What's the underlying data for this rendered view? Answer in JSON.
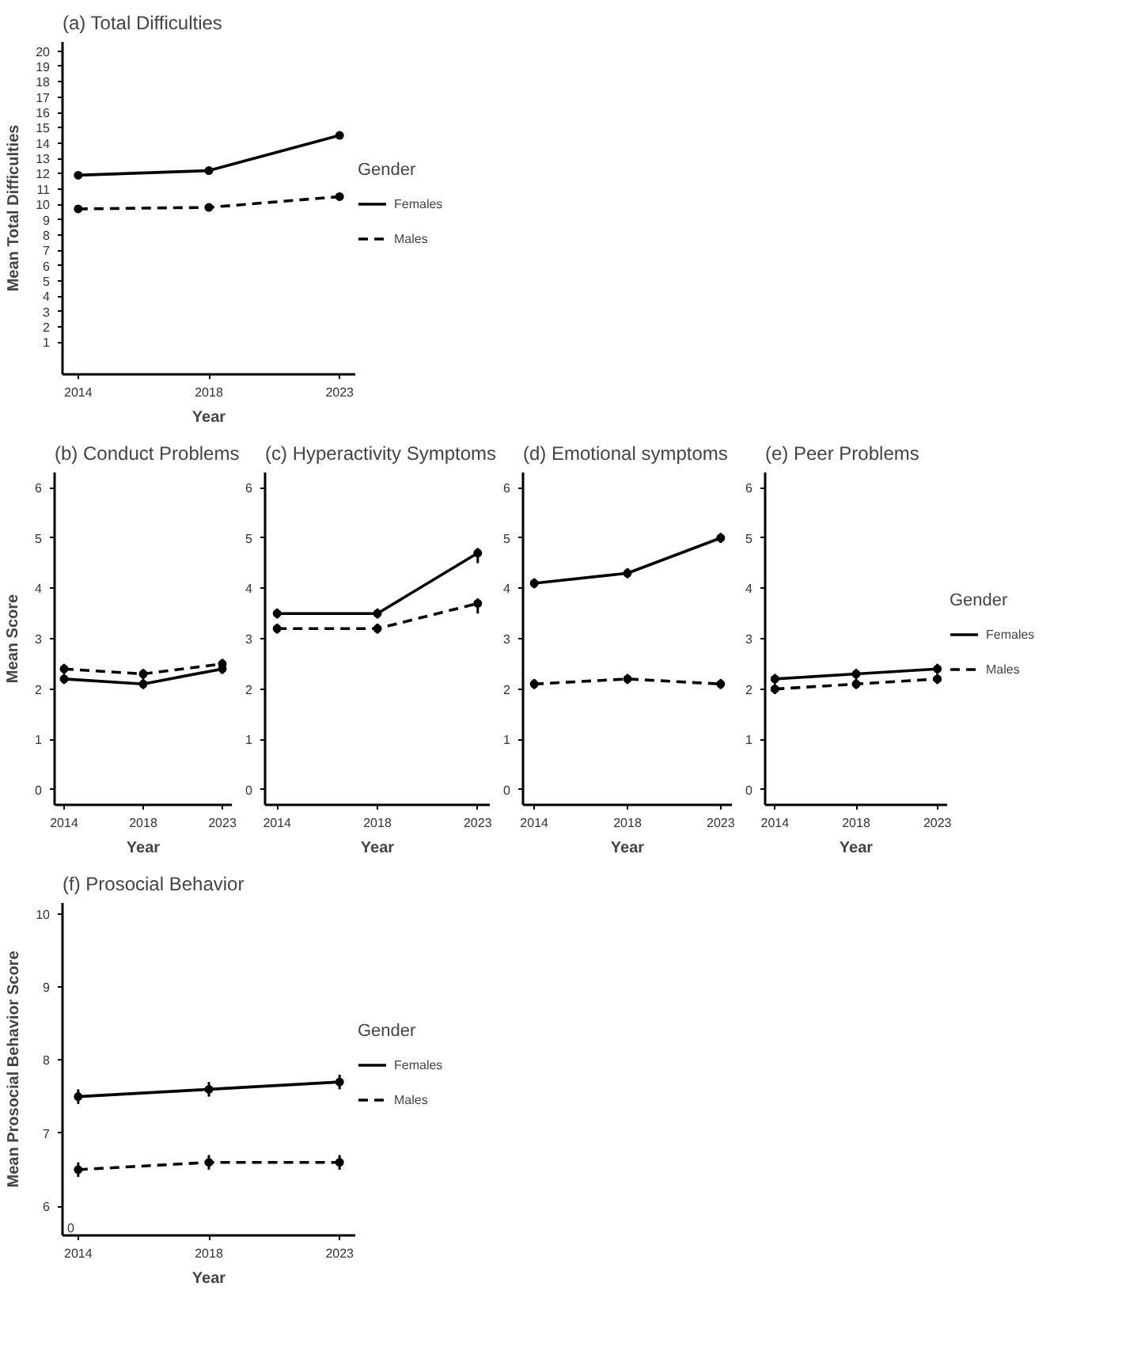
{
  "chart_data": [
    {
      "type": "line",
      "title": "(a) Total Difficulties",
      "xlabel": "Year",
      "ylabel": "Mean Total Difficulties",
      "categories": [
        "2014",
        "2018",
        "2023"
      ],
      "ylim": [
        -1.1,
        20.6
      ],
      "yticks": [
        1,
        2,
        3,
        4,
        5,
        6,
        7,
        8,
        9,
        10,
        11,
        12,
        13,
        14,
        15,
        16,
        17,
        18,
        19,
        20
      ],
      "grid": false,
      "legend": "right",
      "legend_title": "Gender",
      "marker": "circle",
      "series": [
        {
          "name": "Females",
          "color": "#000000",
          "line_style": "solid",
          "values": [
            11.9,
            12.2,
            14.5
          ],
          "errors": [
            0.2,
            0.2,
            0.25
          ]
        },
        {
          "name": "Males",
          "color": "#000000",
          "line_style": "dashed",
          "values": [
            9.7,
            9.8,
            10.5
          ],
          "errors": [
            0.2,
            0.25,
            0.25
          ]
        }
      ]
    },
    {
      "type": "line",
      "title": "(b) Conduct Problems",
      "xlabel": "Year",
      "ylabel": "Mean Score",
      "categories": [
        "2014",
        "2018",
        "2023"
      ],
      "ylim": [
        -0.3,
        6.3
      ],
      "yticks": [
        0,
        1,
        2,
        3,
        4,
        5,
        6
      ],
      "grid": false,
      "legend": false,
      "marker": "circle",
      "series": [
        {
          "color": "#000000",
          "line_style": "solid",
          "values": [
            2.2,
            2.1,
            2.4
          ],
          "errors": [
            0.1,
            0.1,
            0.1
          ]
        },
        {
          "color": "#000000",
          "line_style": "dashed",
          "values": [
            2.4,
            2.3,
            2.5
          ],
          "errors": [
            0.1,
            0.1,
            0.1
          ]
        }
      ]
    },
    {
      "type": "line",
      "title": "(c) Hyperactivity Symptoms",
      "xlabel": "Year",
      "categories": [
        "2014",
        "2018",
        "2023"
      ],
      "ylim": [
        -0.3,
        6.3
      ],
      "yticks": [
        0,
        1,
        2,
        3,
        4,
        5,
        6
      ],
      "grid": false,
      "legend": false,
      "marker": "circle",
      "series": [
        {
          "color": "#000000",
          "line_style": "solid",
          "values": [
            3.5,
            3.5,
            4.7
          ],
          "errors": [
            0.1,
            0.1,
            [
              4.5,
              4.8
            ]
          ]
        },
        {
          "color": "#000000",
          "line_style": "dashed",
          "values": [
            3.2,
            3.2,
            3.7
          ],
          "errors": [
            0.1,
            0.1,
            [
              3.5,
              3.8
            ]
          ]
        }
      ]
    },
    {
      "type": "line",
      "title": "(d) Emotional symptoms",
      "xlabel": "Year",
      "categories": [
        "2014",
        "2018",
        "2023"
      ],
      "ylim": [
        -0.3,
        6.3
      ],
      "yticks": [
        0,
        1,
        2,
        3,
        4,
        5,
        6
      ],
      "grid": false,
      "legend": false,
      "marker": "circle",
      "series": [
        {
          "color": "#000000",
          "line_style": "solid",
          "values": [
            4.1,
            4.3,
            5.0
          ],
          "errors": [
            0.1,
            0.1,
            0.1
          ]
        },
        {
          "color": "#000000",
          "line_style": "dashed",
          "values": [
            2.1,
            2.2,
            2.1
          ],
          "errors": [
            0.1,
            0.1,
            0.1
          ]
        }
      ]
    },
    {
      "type": "line",
      "title": "(e) Peer Problems",
      "xlabel": "Year",
      "categories": [
        "2014",
        "2018",
        "2023"
      ],
      "ylim": [
        -0.3,
        6.3
      ],
      "yticks": [
        0,
        1,
        2,
        3,
        4,
        5,
        6
      ],
      "grid": false,
      "legend": "right",
      "legend_title": "Gender",
      "marker": "circle",
      "series": [
        {
          "name": "Females",
          "color": "#000000",
          "line_style": "solid",
          "values": [
            2.2,
            2.3,
            2.4
          ],
          "errors": [
            0.1,
            0.1,
            0.1
          ]
        },
        {
          "name": "Males",
          "color": "#000000",
          "line_style": "dashed",
          "values": [
            2.0,
            2.1,
            2.2
          ],
          "errors": [
            0.1,
            0.1,
            0.1
          ]
        }
      ]
    },
    {
      "type": "line",
      "title": "(f) Prosocial Behavior",
      "xlabel": "Year",
      "ylabel": "Mean Prosocial Behavior Score",
      "categories": [
        "2014",
        "2018",
        "2023"
      ],
      "ylim": [
        5.6,
        10.15
      ],
      "yticks": [
        6,
        7,
        8,
        9,
        10
      ],
      "annotations": [
        "0"
      ],
      "grid": false,
      "legend": "right",
      "legend_title": "Gender",
      "marker": "circle",
      "series": [
        {
          "name": "Females",
          "color": "#000000",
          "line_style": "solid",
          "values": [
            7.5,
            7.6,
            7.7
          ],
          "errors": [
            0.1,
            0.1,
            0.1
          ]
        },
        {
          "name": "Males",
          "color": "#000000",
          "line_style": "dashed",
          "values": [
            6.5,
            6.6,
            6.6
          ],
          "errors": [
            0.1,
            0.1,
            0.1
          ]
        }
      ]
    }
  ]
}
